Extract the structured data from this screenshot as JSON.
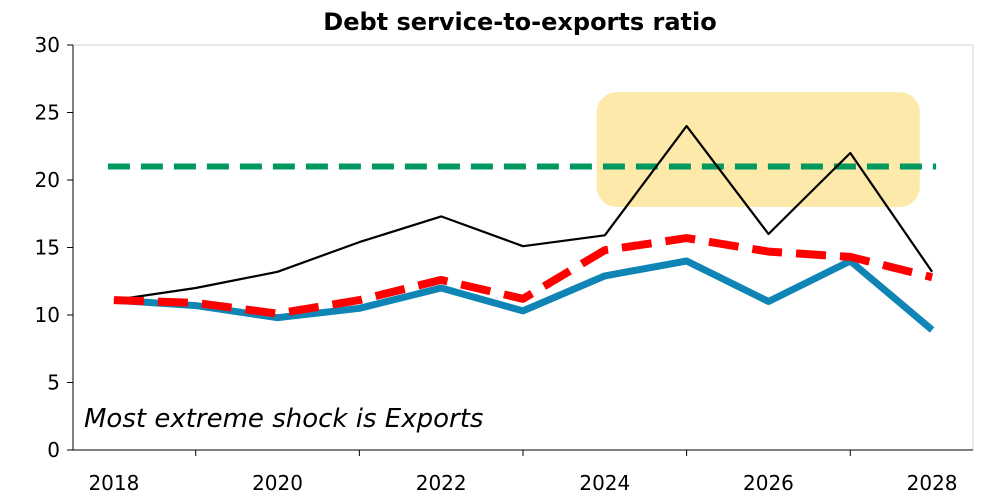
{
  "chart_data": {
    "type": "line",
    "title": "Debt service-to-exports ratio",
    "xlabel": "",
    "ylabel": "",
    "x": [
      2018,
      2019,
      2020,
      2021,
      2022,
      2023,
      2024,
      2025,
      2026,
      2027,
      2028
    ],
    "x_tick_labels": [
      "2018",
      "2020",
      "2022",
      "2024",
      "2026",
      "2028"
    ],
    "y_tick_labels": [
      "0",
      "5",
      "10",
      "15",
      "20",
      "25",
      "30"
    ],
    "xlim": [
      2017.5,
      2028.5
    ],
    "ylim": [
      0,
      30
    ],
    "grid": false,
    "legend": "none",
    "annotation": "Most extreme shock is Exports",
    "highlight_region": {
      "x": [
        2023.9,
        2027.85
      ],
      "y": [
        18,
        26.5
      ],
      "color": "#fde9a9"
    },
    "series": [
      {
        "values": [
          11.1,
          12.0,
          13.2,
          15.4,
          17.3,
          15.1,
          15.9,
          24.0,
          16.0,
          22.0,
          13.2
        ],
        "color": "#000000",
        "style": "thin-solid"
      },
      {
        "values": [
          11.1,
          10.9,
          10.1,
          11.1,
          12.6,
          11.2,
          14.8,
          15.7,
          14.7,
          14.3,
          12.8
        ],
        "color": "#ff0000",
        "style": "thick-dashed"
      },
      {
        "values": [
          11.1,
          10.7,
          9.8,
          10.5,
          12.0,
          10.3,
          12.9,
          14.0,
          11.0,
          14.0,
          8.9
        ],
        "color": "#0e85b5",
        "style": "thick-solid"
      },
      {
        "values": [
          21,
          21,
          21,
          21,
          21,
          21,
          21,
          21,
          21,
          21,
          21
        ],
        "color": "#00985f",
        "style": "thick-dotted"
      }
    ]
  }
}
